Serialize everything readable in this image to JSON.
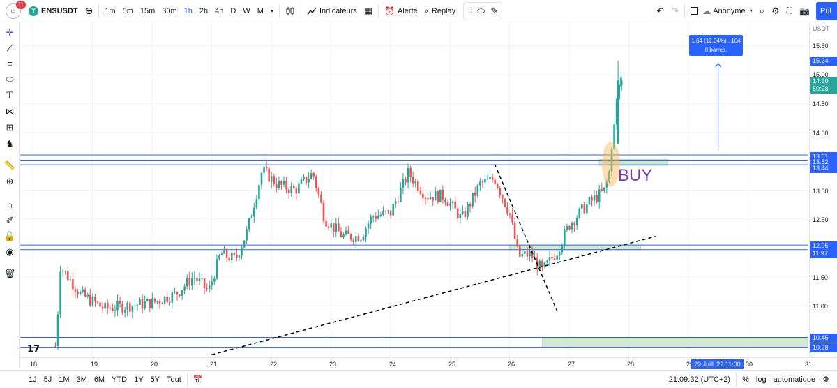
{
  "topbar": {
    "notification_count": "11",
    "symbol": "ENSUSDT",
    "symbol_badge": "T",
    "timeframes": [
      "1m",
      "5m",
      "15m",
      "30m",
      "1h",
      "2h",
      "4h",
      "D",
      "W",
      "M"
    ],
    "active_timeframe": "1h",
    "indicators_label": "Indicateurs",
    "alert_label": "Alerte",
    "replay_label": "Replay",
    "layout_name": "Anonyme",
    "publish_label": "Pul"
  },
  "left_tools": [
    "crosshair-icon",
    "trend-line-icon",
    "fib-icon",
    "brush-icon",
    "text-icon",
    "pattern-icon",
    "prediction-icon",
    "icons-icon",
    "ruler-icon",
    "zoom-icon",
    "magnet-icon",
    "lock-draw-icon",
    "lock-icon",
    "eye-icon",
    "trash-icon"
  ],
  "price_axis": {
    "currency": "USDT",
    "ticks": [
      "15.50",
      "15.00",
      "14.50",
      "14.00",
      "13.00",
      "12.50",
      "11.50",
      "11.00"
    ],
    "labels": {
      "high": "15.24",
      "last": "14.90",
      "countdown": "50:28",
      "r1": "13.61",
      "r2": "13.52",
      "r3": "13.44",
      "s1": "12.05",
      "s2": "11.97",
      "b1": "10.45",
      "b2": "10.28"
    }
  },
  "time_axis": {
    "ticks": [
      "18",
      "19",
      "20",
      "21",
      "22",
      "23",
      "24",
      "25",
      "26",
      "27",
      "28",
      "29",
      "30",
      "31"
    ],
    "cursor_label": "29 Juill '22   11:00"
  },
  "annotation": {
    "line1": "1.64 (12.04%) , 164",
    "line2": "0 barres,"
  },
  "buy_label": "BUY",
  "bottombar": {
    "ranges": [
      "1J",
      "5J",
      "1M",
      "3M",
      "6M",
      "YTD",
      "1Y",
      "5Y",
      "Tout"
    ],
    "clock": "21:09:32 (UTC+2)",
    "percent": "%",
    "log": "log",
    "auto": "automatique"
  },
  "colors": {
    "up": "#26a69a",
    "down": "#ef5350",
    "accent": "#2962ff",
    "zone": "#c8e6c9"
  },
  "chart_data": {
    "type": "candlestick",
    "title": "ENSUSDT 1h",
    "ylim": [
      10.15,
      16.0
    ],
    "horizontal_levels": [
      13.61,
      13.52,
      13.44,
      12.05,
      11.97,
      10.45,
      10.28
    ],
    "price_path": [
      [
        18.4,
        10.3
      ],
      [
        18.45,
        11.7
      ],
      [
        18.8,
        11.2
      ],
      [
        19.2,
        10.95
      ],
      [
        19.6,
        11.0
      ],
      [
        20.0,
        11.05
      ],
      [
        20.4,
        11.2
      ],
      [
        20.7,
        11.5
      ],
      [
        20.95,
        11.25
      ],
      [
        21.15,
        11.9
      ],
      [
        21.4,
        11.8
      ],
      [
        21.6,
        12.3
      ],
      [
        21.85,
        13.35
      ],
      [
        22.1,
        13.1
      ],
      [
        22.4,
        13.0
      ],
      [
        22.7,
        13.3
      ],
      [
        22.9,
        12.5
      ],
      [
        23.2,
        12.2
      ],
      [
        23.5,
        12.2
      ],
      [
        23.7,
        12.55
      ],
      [
        24.0,
        12.6
      ],
      [
        24.3,
        13.3
      ],
      [
        24.6,
        12.9
      ],
      [
        24.9,
        12.9
      ],
      [
        25.2,
        12.5
      ],
      [
        25.5,
        13.1
      ],
      [
        25.75,
        13.2
      ],
      [
        26.0,
        12.6
      ],
      [
        26.15,
        11.85
      ],
      [
        26.35,
        11.9
      ],
      [
        26.55,
        11.6
      ],
      [
        26.8,
        11.95
      ],
      [
        27.0,
        12.4
      ],
      [
        27.3,
        12.75
      ],
      [
        27.6,
        13.0
      ],
      [
        27.75,
        13.65
      ],
      [
        27.85,
        14.7
      ],
      [
        27.9,
        14.9
      ]
    ]
  }
}
